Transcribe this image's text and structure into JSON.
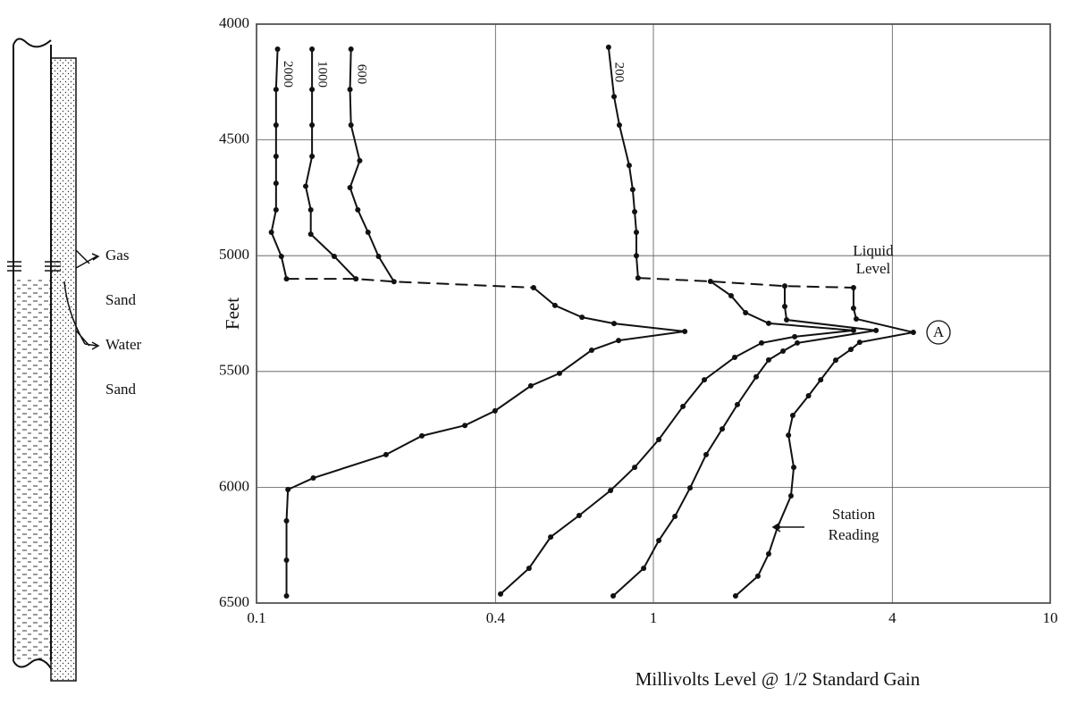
{
  "chart_data": {
    "type": "line",
    "xlabel": "Millivolts Level @ 1/2 Standard Gain",
    "ylabel": "Feet",
    "xscale": "log",
    "xlim": [
      0.1,
      10
    ],
    "ylim": [
      6500,
      4000
    ],
    "xticks": [
      0.1,
      0.4,
      1,
      4,
      10
    ],
    "yticks": [
      4000,
      4500,
      5000,
      5500,
      6000,
      6500
    ],
    "grid": true,
    "series": [
      {
        "name": "2000",
        "color": "#111111",
        "x": [
          0.113,
          0.112,
          0.112,
          0.112,
          0.112,
          0.112,
          0.109,
          0.1155,
          0.119
        ],
        "values": [
          4108,
          4282,
          4436,
          4571,
          4687,
          4802,
          4899,
          5003,
          5100
        ]
      },
      {
        "name": "1000",
        "color": "#111111",
        "x": [
          0.138,
          0.138,
          0.138,
          0.138,
          0.133,
          0.137,
          0.137,
          0.157,
          0.178
        ],
        "values": [
          4108,
          4282,
          4436,
          4571,
          4700,
          4802,
          4907,
          5003,
          5100
        ]
      },
      {
        "name": "600",
        "color": "#111111",
        "x": [
          0.173,
          0.172,
          0.173,
          0.182,
          0.172,
          0.18,
          0.191,
          0.203,
          0.222
        ],
        "values": [
          4108,
          4282,
          4436,
          4590,
          4706,
          4802,
          4899,
          5003,
          5112
        ]
      },
      {
        "name": "200",
        "color": "#111111",
        "x": [
          0.771,
          0.796,
          0.821,
          0.869,
          0.887,
          0.897,
          0.906,
          0.906,
          0.915
        ],
        "values": [
          4100,
          4313,
          4436,
          4610,
          4714,
          4810,
          4899,
          5000,
          5096
        ]
      },
      {
        "color": "#111111",
        "x": [
          0.499,
          0.565,
          0.661,
          0.796,
          1.2,
          0.817,
          0.699,
          0.58,
          0.491,
          0.399,
          0.335,
          0.261,
          0.212,
          0.139,
          0.12,
          0.119,
          0.119,
          0.119
        ],
        "values": [
          5138,
          5215,
          5266,
          5293,
          5327,
          5366,
          5408,
          5508,
          5562,
          5670,
          5733,
          5778,
          5859,
          5960,
          6010,
          6145,
          6315,
          6469
        ]
      },
      {
        "color": "#111111",
        "x": [
          1.393,
          1.57,
          1.707,
          1.952,
          3.194,
          2.27,
          1.873,
          1.603,
          1.344,
          1.187,
          1.032,
          0.897,
          0.78,
          0.65,
          0.551,
          0.486,
          0.412
        ],
        "values": [
          5111,
          5173,
          5246,
          5292,
          5323,
          5350,
          5377,
          5439,
          5536,
          5651,
          5794,
          5914,
          6014,
          6122,
          6215,
          6350,
          6461
        ]
      },
      {
        "color": "#111111",
        "x": [
          2.143,
          2.143,
          2.166,
          3.64,
          2.305,
          2.122,
          1.952,
          1.816,
          1.628,
          1.491,
          1.358,
          1.237,
          1.133,
          1.032,
          0.945,
          0.792
        ],
        "values": [
          5131,
          5219,
          5277,
          5323,
          5377,
          5412,
          5450,
          5523,
          5643,
          5748,
          5859,
          6003,
          6126,
          6230,
          6350,
          6469
        ]
      },
      {
        "color": "#111111",
        "x": [
          3.194,
          3.194,
          3.245,
          4.52,
          3.31,
          3.145,
          2.88,
          2.64,
          2.46,
          2.245,
          2.19,
          2.258,
          2.222,
          2.056,
          1.952,
          1.834,
          1.611
        ],
        "values": [
          5138,
          5227,
          5273,
          5331,
          5374,
          5405,
          5451,
          5536,
          5605,
          5690,
          5775,
          5914,
          6037,
          6172,
          6288,
          6384,
          6469
        ]
      },
      {
        "name": "Liquid Level",
        "color": "#111111",
        "dashed": true,
        "x": [
          0.119,
          0.178,
          0.222,
          0.499,
          null,
          0.915,
          1.393,
          2.143,
          3.194
        ],
        "values": [
          5100,
          5100,
          5112,
          5138,
          null,
          5096,
          5111,
          5131,
          5138
        ]
      }
    ],
    "station_reading": [
      "Station",
      "Reading"
    ],
    "point_label": "A"
  },
  "well": {
    "labels": [
      "Gas",
      "Sand",
      "Water",
      "Sand"
    ]
  }
}
